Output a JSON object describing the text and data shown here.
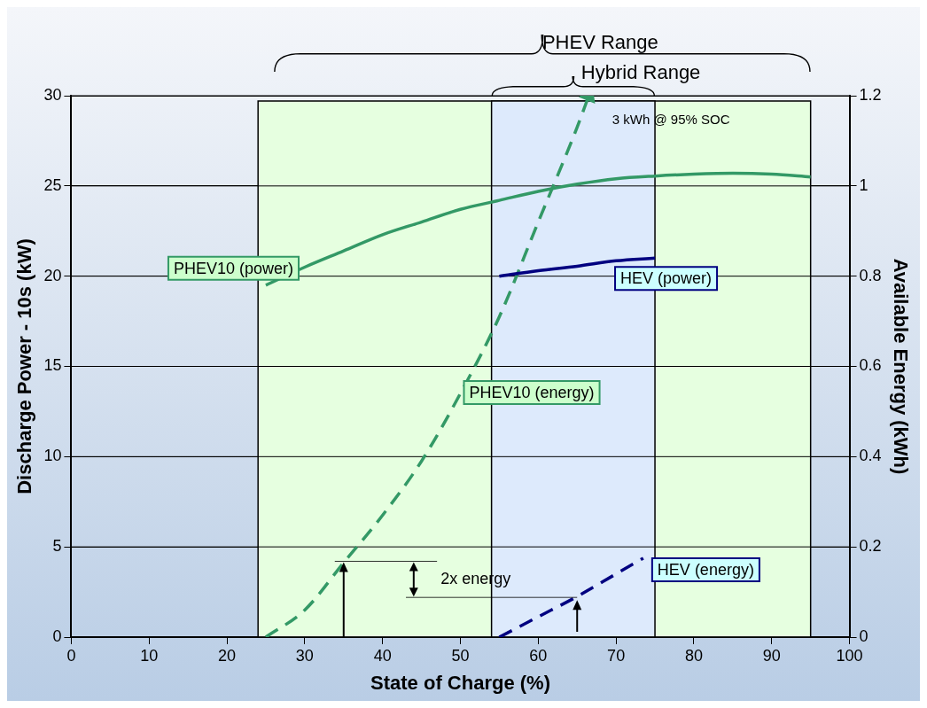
{
  "chart_data": {
    "type": "line",
    "xlabel": "State of Charge (%)",
    "ylabel": "Discharge Power - 10s (kW)",
    "y2label": "Available Energy (kWh)",
    "xlim": [
      0,
      100
    ],
    "xticks": [
      0,
      10,
      20,
      30,
      40,
      50,
      60,
      70,
      80,
      90,
      100
    ],
    "ylim": [
      0,
      30
    ],
    "yticks": [
      0,
      5,
      10,
      15,
      20,
      25,
      30
    ],
    "y2lim": [
      0,
      1.2
    ],
    "y2ticks": [
      0,
      0.2,
      0.4,
      0.6,
      0.8,
      1,
      1.2
    ],
    "grid": "y",
    "legend": false,
    "marker": "none",
    "series": [
      {
        "name": "PHEV10 (power)",
        "color": "#339966",
        "line_style": "solid",
        "x": [
          25,
          30,
          35,
          40,
          45,
          50,
          55,
          60,
          65,
          70,
          75,
          80,
          85,
          90,
          95
        ],
        "values": [
          19.5,
          20.5,
          21.4,
          22.3,
          23.0,
          23.7,
          24.2,
          24.7,
          25.1,
          25.4,
          25.55,
          25.65,
          25.7,
          25.65,
          25.5
        ]
      },
      {
        "name": "HEV (power)",
        "color": "#000080",
        "line_style": "solid",
        "x": [
          55,
          60,
          65,
          70,
          75
        ],
        "values": [
          20,
          20.3,
          20.55,
          20.85,
          21
        ]
      },
      {
        "name": "PHEV10 (energy)",
        "color": "#339966",
        "line_style": "dashed",
        "axis": "y2",
        "x": [
          25,
          30,
          35,
          40,
          45,
          50,
          55,
          60,
          65,
          66.5
        ],
        "values": [
          0,
          0.06,
          0.165,
          0.27,
          0.39,
          0.54,
          0.71,
          0.92,
          1.13,
          1.2
        ]
      },
      {
        "name": "HEV (energy)",
        "color": "#000080",
        "line_style": "dashed",
        "axis": "y2",
        "x": [
          55,
          60,
          65,
          70,
          73.5
        ],
        "values": [
          0,
          0.045,
          0.09,
          0.14,
          0.175
        ]
      }
    ],
    "bands": [
      {
        "axis": "x",
        "from": 24,
        "to": 95,
        "label": "PHEV Range",
        "color": "#e6ffe0"
      },
      {
        "axis": "x",
        "from": 54,
        "to": 75,
        "label": "Hybrid Range",
        "color": "#ddeafc"
      }
    ],
    "annotations": [
      "3 kWh @ 95% SOC",
      "2x energy"
    ]
  }
}
